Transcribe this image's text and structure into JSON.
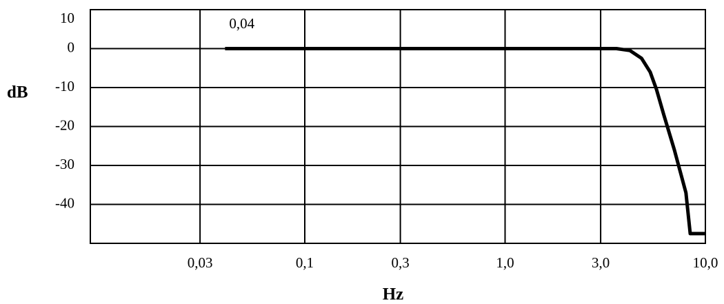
{
  "chart_data": {
    "type": "line",
    "title": "",
    "xlabel": "Hz",
    "ylabel": "dB",
    "x_scale": "log",
    "xlim": [
      0.0085,
      10.0
    ],
    "ylim": [
      -50,
      10
    ],
    "grid": true,
    "x_ticks": [
      {
        "value": 0.03,
        "label": "0,03"
      },
      {
        "value": 0.1,
        "label": "0,1"
      },
      {
        "value": 0.3,
        "label": "0,3"
      },
      {
        "value": 1.0,
        "label": "1,0"
      },
      {
        "value": 3.0,
        "label": "3,0"
      },
      {
        "value": 10.0,
        "label": "10,0"
      }
    ],
    "y_ticks": [
      {
        "value": 10,
        "label": "10"
      },
      {
        "value": 0,
        "label": "0"
      },
      {
        "value": -10,
        "label": "-10"
      },
      {
        "value": -20,
        "label": "-20"
      },
      {
        "value": -30,
        "label": "-30"
      },
      {
        "value": -40,
        "label": "-40"
      }
    ],
    "annotations": [
      {
        "text": "0,04",
        "x": 0.04,
        "y": 2.5
      }
    ],
    "series": [
      {
        "x": [
          0.04,
          0.1,
          0.3,
          1.0,
          3.0,
          3.6,
          4.2,
          4.8,
          5.3,
          5.7,
          6.2,
          7.0,
          8.0,
          8.4,
          10.0
        ],
        "y": [
          0,
          0,
          0,
          0,
          0,
          0,
          -0.5,
          -2.5,
          -6,
          -10.5,
          -17,
          -26,
          -37,
          -47.5,
          -47.5
        ]
      }
    ],
    "colors": {
      "line": "#000000",
      "grid": "#000000",
      "background": "#ffffff"
    }
  }
}
